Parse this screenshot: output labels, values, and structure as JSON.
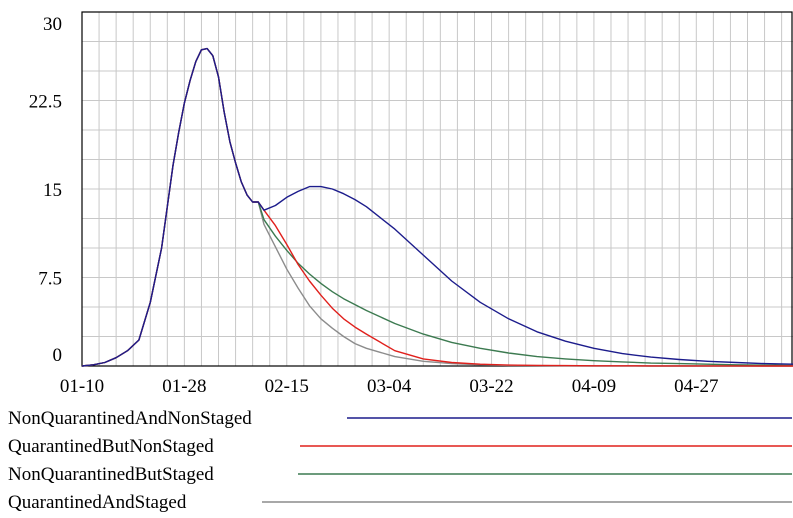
{
  "chart_data": {
    "type": "line",
    "title": "",
    "xlabel": "",
    "ylabel": "",
    "ylim": [
      0,
      30
    ],
    "y_ticks": [
      "0",
      "7.5",
      "15",
      "22.5",
      "30"
    ],
    "y_tick_values": [
      0,
      7.5,
      15,
      22.5,
      30
    ],
    "x_tick_labels": [
      "01-10",
      "01-28",
      "02-15",
      "03-04",
      "03-22",
      "04-09",
      "04-27"
    ],
    "x_tick_days": [
      0,
      18,
      36,
      54,
      72,
      90,
      108
    ],
    "x_range_days": [
      0,
      125
    ],
    "x_start_date": "01-10",
    "grid": true,
    "legend_position": "bottom",
    "series": [
      {
        "name": "NonQuarantinedAndNonStaged",
        "color": "#1c1c8c",
        "x": [
          0,
          2,
          4,
          6,
          8,
          10,
          12,
          14,
          15,
          16,
          17,
          18,
          19,
          20,
          21,
          22,
          23,
          24,
          25,
          26,
          27,
          28,
          29,
          30,
          31,
          32,
          34,
          36,
          38,
          40,
          42,
          44,
          46,
          48,
          50,
          55,
          60,
          65,
          70,
          75,
          80,
          85,
          90,
          95,
          100,
          105,
          110,
          115,
          120,
          125
        ],
        "y": [
          0,
          0.1,
          0.3,
          0.7,
          1.3,
          2.2,
          5.4,
          10,
          13.5,
          17,
          19.8,
          22.3,
          24.2,
          25.8,
          26.8,
          26.9,
          26.3,
          24.5,
          21.5,
          19,
          17.2,
          15.6,
          14.5,
          13.9,
          13.9,
          13.2,
          13.6,
          14.3,
          14.8,
          15.2,
          15.2,
          15,
          14.6,
          14.1,
          13.5,
          11.6,
          9.4,
          7.2,
          5.4,
          4,
          2.9,
          2.1,
          1.5,
          1.05,
          0.75,
          0.55,
          0.4,
          0.3,
          0.2,
          0.15
        ]
      },
      {
        "name": "QuarantinedButNonStaged",
        "color": "#e0201c",
        "x": [
          0,
          2,
          4,
          6,
          8,
          10,
          12,
          14,
          15,
          16,
          17,
          18,
          19,
          20,
          21,
          22,
          23,
          24,
          25,
          26,
          27,
          28,
          29,
          30,
          31,
          32,
          34,
          36,
          38,
          40,
          42,
          44,
          46,
          48,
          50,
          55,
          60,
          65,
          70,
          75,
          80,
          85,
          90,
          95,
          100,
          105,
          110,
          115,
          120,
          125
        ],
        "y": [
          0,
          0.1,
          0.3,
          0.7,
          1.3,
          2.2,
          5.4,
          10,
          13.5,
          17,
          19.8,
          22.3,
          24.2,
          25.8,
          26.8,
          26.9,
          26.3,
          24.5,
          21.5,
          19,
          17.2,
          15.6,
          14.5,
          13.9,
          13.9,
          13.2,
          11.9,
          10.3,
          8.6,
          7.2,
          6,
          4.9,
          4,
          3.3,
          2.7,
          1.3,
          0.6,
          0.3,
          0.15,
          0.08,
          0.05,
          0.03,
          0.02,
          0.02,
          0.01,
          0.01,
          0.01,
          0.01,
          0,
          0
        ]
      },
      {
        "name": "NonQuarantinedButStaged",
        "color": "#3c7a50",
        "x": [
          0,
          2,
          4,
          6,
          8,
          10,
          12,
          14,
          15,
          16,
          17,
          18,
          19,
          20,
          21,
          22,
          23,
          24,
          25,
          26,
          27,
          28,
          29,
          30,
          31,
          32,
          34,
          36,
          38,
          40,
          42,
          44,
          46,
          48,
          50,
          55,
          60,
          65,
          70,
          75,
          80,
          85,
          90,
          95,
          100,
          105,
          110,
          115,
          120,
          125
        ],
        "y": [
          0,
          0.1,
          0.3,
          0.7,
          1.3,
          2.2,
          5.4,
          10,
          13.5,
          17,
          19.8,
          22.3,
          24.2,
          25.8,
          26.8,
          26.9,
          26.3,
          24.5,
          21.5,
          19,
          17.2,
          15.6,
          14.5,
          13.9,
          13.9,
          12.4,
          11,
          9.8,
          8.7,
          7.8,
          7,
          6.3,
          5.7,
          5.2,
          4.7,
          3.6,
          2.7,
          2,
          1.5,
          1.1,
          0.8,
          0.6,
          0.45,
          0.35,
          0.25,
          0.2,
          0.15,
          0.1,
          0.08,
          0.05
        ]
      },
      {
        "name": "QuarantinedAndStaged",
        "color": "#8c8c8c",
        "x": [
          0,
          2,
          4,
          6,
          8,
          10,
          12,
          14,
          15,
          16,
          17,
          18,
          19,
          20,
          21,
          22,
          23,
          24,
          25,
          26,
          27,
          28,
          29,
          30,
          31,
          32,
          34,
          36,
          38,
          40,
          42,
          44,
          46,
          48,
          50,
          55,
          60,
          65,
          70,
          75,
          80,
          85,
          90,
          95,
          100,
          105,
          110,
          115,
          120,
          125
        ],
        "y": [
          0,
          0.1,
          0.3,
          0.7,
          1.3,
          2.2,
          5.4,
          10,
          13.5,
          17,
          19.8,
          22.3,
          24.2,
          25.8,
          26.8,
          26.9,
          26.3,
          24.5,
          21.5,
          19,
          17.2,
          15.6,
          14.5,
          13.9,
          13.9,
          12,
          10.1,
          8.2,
          6.6,
          5.1,
          4,
          3.2,
          2.5,
          1.9,
          1.5,
          0.8,
          0.4,
          0.2,
          0.1,
          0.05,
          0.03,
          0.02,
          0.01,
          0.01,
          0,
          0,
          0,
          0,
          0,
          0
        ]
      }
    ]
  }
}
